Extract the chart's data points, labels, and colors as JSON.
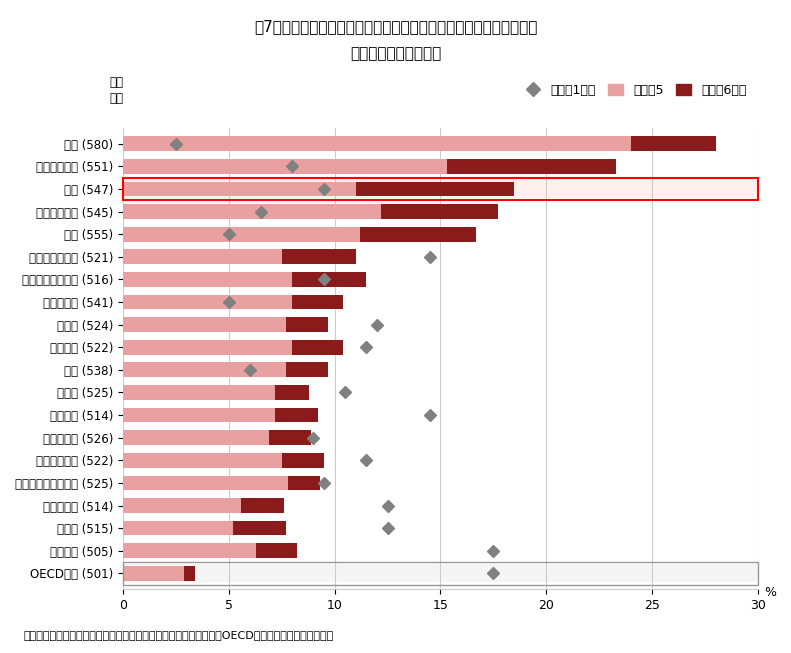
{
  "title_line1": "図7　習熟度レベル別（レベル１以下・レベル５以上）の生徒の割合",
  "title_line2": "（科学的リテラシー）",
  "xlabel": "",
  "ylabel_top": "平均\n得点",
  "legend_labels": [
    "レベル1以下",
    "レベル5",
    "レベル6以上"
  ],
  "note": "（注）　習熟度レベル５以上の生徒の割合が多い順に、上から国（OECD平均以上）を並べている。",
  "countries": [
    "上海 (580)",
    "シンガポール (551)",
    "日本 (547)",
    "フィンランド (545)",
    "香港 (555)",
    "オーストラリア (521)",
    "ニュージーランド (516)",
    "エストニア (541)",
    "ドイツ (524)",
    "オランダ (522)",
    "韓国 (538)",
    "カナダ (525)",
    "イギリス (514)",
    "ポーランド (526)",
    "アイルランド (522)",
    "リヒテンシュタイン (525)",
    "スロベニア (514)",
    "スイス (515)",
    "ベルギー (505)",
    "OECD平均 (501)"
  ],
  "level5": [
    24.0,
    15.3,
    11.0,
    12.2,
    11.2,
    7.5,
    8.0,
    8.0,
    7.7,
    8.0,
    7.7,
    7.2,
    7.2,
    6.9,
    7.5,
    7.8,
    5.6,
    5.2,
    6.3,
    2.9
  ],
  "level6": [
    4.0,
    8.0,
    7.5,
    5.5,
    5.5,
    3.5,
    3.5,
    2.4,
    2.0,
    2.4,
    2.0,
    1.6,
    2.0,
    2.0,
    2.0,
    1.5,
    2.0,
    2.5,
    1.9,
    0.5
  ],
  "level1_below": [
    2.5,
    8.0,
    9.5,
    6.5,
    5.0,
    14.5,
    9.5,
    5.0,
    12.0,
    11.5,
    6.0,
    10.5,
    14.5,
    9.0,
    11.5,
    9.5,
    12.5,
    12.5,
    17.5,
    17.5
  ],
  "highlight_index": 2,
  "oecd_index": 19,
  "color_level5": "#e8a0a0",
  "color_level6": "#8b1a1a",
  "color_diamond": "#808080",
  "color_highlight_bg": "#fff0f0",
  "color_oecd_bg": "#f5f5f5",
  "xlim": [
    0,
    30
  ],
  "xticks": [
    0,
    5,
    10,
    15,
    20,
    25,
    30
  ],
  "grid_color": "#cccccc",
  "bar_height": 0.65
}
